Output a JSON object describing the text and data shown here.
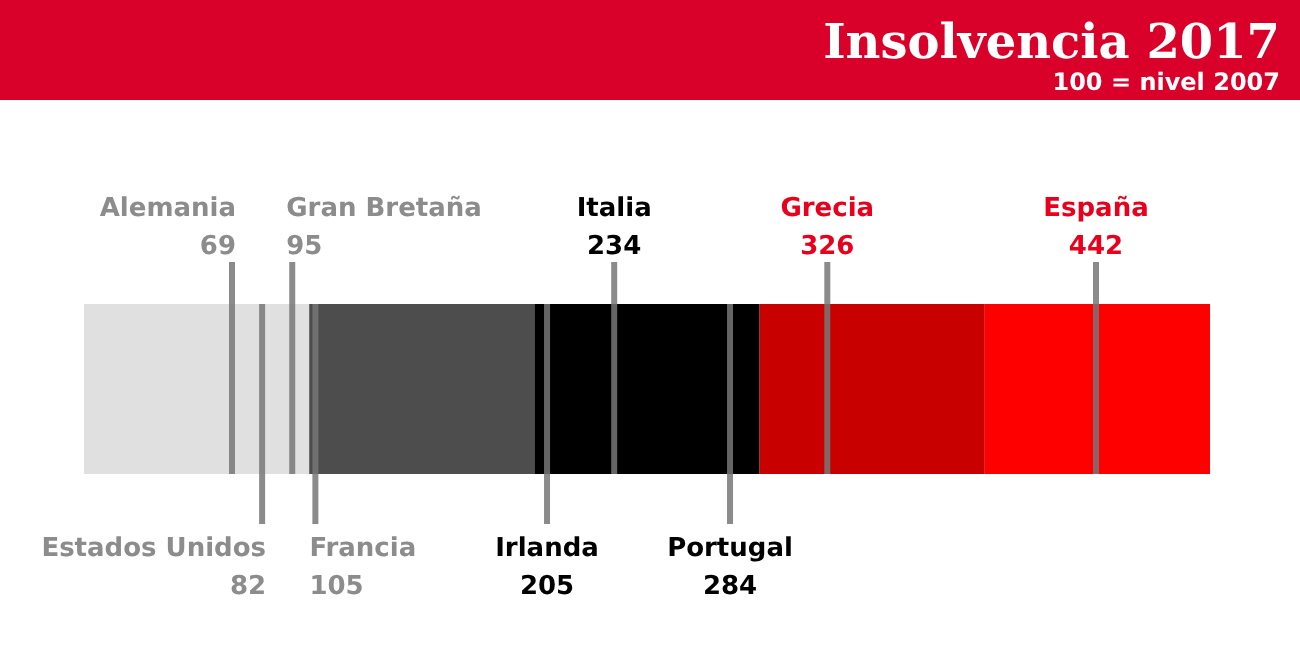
{
  "chart_data": {
    "type": "other",
    "title": "Insolvencia 2017",
    "subtitle": "100 = nivel 2007",
    "categories": [
      "Alemania",
      "Estados Unidos",
      "Gran Bretaña",
      "Francia",
      "Irlanda",
      "Italia",
      "Portugal",
      "Grecia",
      "España"
    ],
    "values": [
      69,
      82,
      95,
      105,
      205,
      234,
      284,
      326,
      442
    ],
    "colors": [
      "#8c8c8c",
      "#8c8c8c",
      "#8c8c8c",
      "#8c8c8c",
      "#000000",
      "#000000",
      "#000000",
      "#e8001c",
      "#e8001c"
    ],
    "data_labels": true
  }
}
